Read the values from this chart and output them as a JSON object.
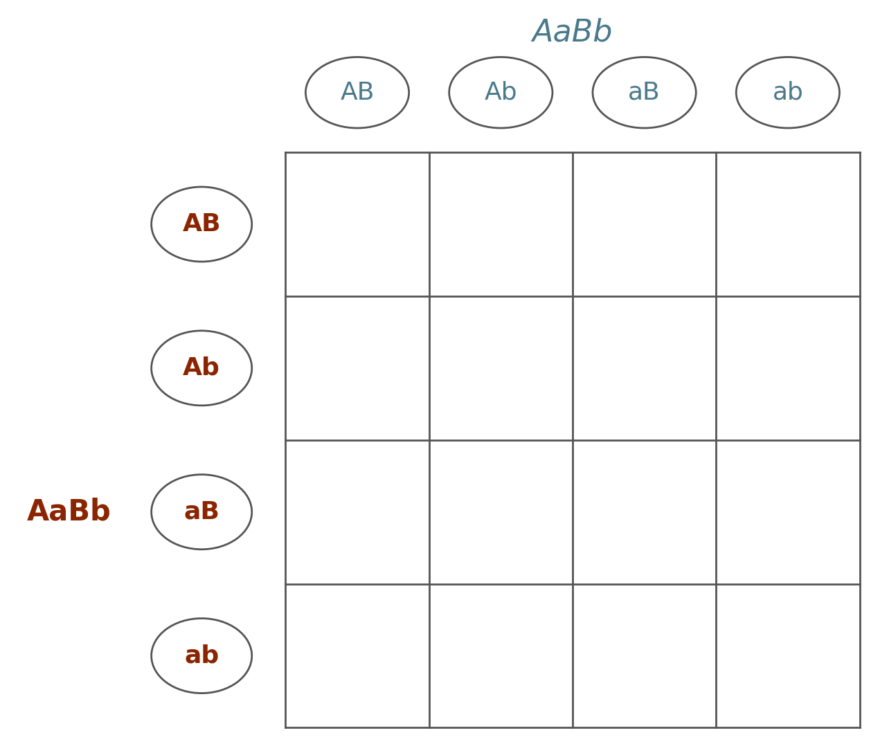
{
  "title": "AaBb",
  "title_color": "#4a7a8a",
  "title_fontsize": 32,
  "col_labels": [
    "AB",
    "Ab",
    "aB",
    "ab"
  ],
  "row_labels": [
    "AB",
    "Ab",
    "aB",
    "ab"
  ],
  "col_label_color": "#4a7a8a",
  "row_label_color": "#8B2500",
  "side_label": "AaBb",
  "side_label_color": "#8B2500",
  "side_label_fontsize": 30,
  "grid_color": "#555555",
  "grid_linewidth": 2.0,
  "oval_edge_color": "#555555",
  "oval_linewidth": 2.0,
  "background_color": "#ffffff",
  "col_label_fontsize": 26,
  "row_label_fontsize": 26
}
